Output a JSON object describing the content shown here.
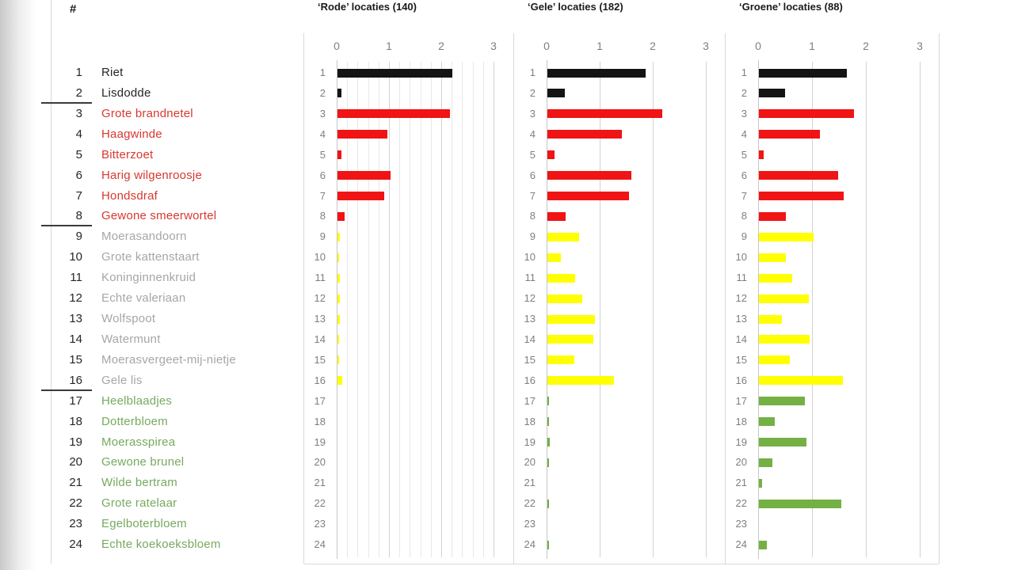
{
  "table": {
    "header_label": "#"
  },
  "species": [
    {
      "num": 1,
      "name": "Riet",
      "group": "black"
    },
    {
      "num": 2,
      "name": "Lisdodde",
      "group": "black"
    },
    {
      "num": 3,
      "name": "Grote brandnetel",
      "group": "red"
    },
    {
      "num": 4,
      "name": "Haagwinde",
      "group": "red"
    },
    {
      "num": 5,
      "name": "Bitterzoet",
      "group": "red"
    },
    {
      "num": 6,
      "name": "Harig wilgenroosje",
      "group": "red"
    },
    {
      "num": 7,
      "name": "Hondsdraf",
      "group": "red"
    },
    {
      "num": 8,
      "name": "Gewone smeerwortel",
      "group": "red"
    },
    {
      "num": 9,
      "name": "Moerasandoorn",
      "group": "yellow"
    },
    {
      "num": 10,
      "name": "Grote kattenstaart",
      "group": "yellow"
    },
    {
      "num": 11,
      "name": "Koninginnenkruid",
      "group": "yellow"
    },
    {
      "num": 12,
      "name": "Echte valeriaan",
      "group": "yellow"
    },
    {
      "num": 13,
      "name": "Wolfspoot",
      "group": "yellow"
    },
    {
      "num": 14,
      "name": "Watermunt",
      "group": "yellow"
    },
    {
      "num": 15,
      "name": "Moerasvergeet-mij-nietje",
      "group": "yellow"
    },
    {
      "num": 16,
      "name": "Gele lis",
      "group": "yellow"
    },
    {
      "num": 17,
      "name": "Heelblaadjes",
      "group": "green"
    },
    {
      "num": 18,
      "name": "Dotterbloem",
      "group": "green"
    },
    {
      "num": 19,
      "name": "Moerasspirea",
      "group": "green"
    },
    {
      "num": 20,
      "name": "Gewone brunel",
      "group": "green"
    },
    {
      "num": 21,
      "name": "Wilde bertram",
      "group": "green"
    },
    {
      "num": 22,
      "name": "Grote ratelaar",
      "group": "green"
    },
    {
      "num": 23,
      "name": "Egelboterbloem",
      "group": "green"
    },
    {
      "num": 24,
      "name": "Echte koekoeksbloem",
      "group": "green"
    }
  ],
  "chart_data": {
    "type": "bar",
    "orientation": "horizontal",
    "xlim": [
      0,
      3
    ],
    "x_ticks": [
      0,
      1,
      2,
      3
    ],
    "grid": "vertical",
    "legend": "none",
    "categories": [
      "Riet",
      "Lisdodde",
      "Grote brandnetel",
      "Haagwinde",
      "Bitterzoet",
      "Harig wilgenroosje",
      "Hondsdraf",
      "Gewone smeerwortel",
      "Moerasandoorn",
      "Grote kattenstaart",
      "Koninginnenkruid",
      "Echte valeriaan",
      "Wolfspoot",
      "Watermunt",
      "Moerasvergeet-mij-nietje",
      "Gele lis",
      "Heelblaadjes",
      "Dotterbloem",
      "Moerasspirea",
      "Gewone brunel",
      "Wilde bertram",
      "Grote ratelaar",
      "Egelboterbloem",
      "Echte koekoeksbloem"
    ],
    "category_groups": [
      "black",
      "black",
      "red",
      "red",
      "red",
      "red",
      "red",
      "red",
      "yellow",
      "yellow",
      "yellow",
      "yellow",
      "yellow",
      "yellow",
      "yellow",
      "yellow",
      "green",
      "green",
      "green",
      "green",
      "green",
      "green",
      "green",
      "green"
    ],
    "group_colors": {
      "black": {
        "bar": "#141414",
        "text": "#262626"
      },
      "red": {
        "bar": "#f01414",
        "text": "#d93830"
      },
      "yellow": {
        "bar": "#ffff00",
        "text": "#a6a6a6"
      },
      "green": {
        "bar": "#74b044",
        "text": "#77aa60"
      }
    },
    "charts": [
      {
        "title": "‘Rode’ locaties (140)",
        "location_count": 140,
        "minor_grid_step": 0.2,
        "values": [
          2.2,
          0.08,
          2.15,
          0.95,
          0.07,
          1.02,
          0.9,
          0.13,
          0.05,
          0.01,
          0.04,
          0.04,
          0.05,
          0.03,
          0.01,
          0.09,
          0,
          0,
          0,
          0,
          0,
          0,
          0,
          0
        ]
      },
      {
        "title": "‘Gele’ locaties (182)",
        "location_count": 182,
        "minor_grid_step": 1,
        "values": [
          1.85,
          0.33,
          2.16,
          1.4,
          0.13,
          1.58,
          1.54,
          0.35,
          0.6,
          0.25,
          0.52,
          0.65,
          0.9,
          0.86,
          0.5,
          1.26,
          0.01,
          0.01,
          0.05,
          0.03,
          0,
          0.03,
          0,
          0.01
        ]
      },
      {
        "title": "‘Groene’ locaties (88)",
        "location_count": 88,
        "minor_grid_step": 1,
        "values": [
          1.63,
          0.48,
          1.77,
          1.13,
          0.09,
          1.47,
          1.57,
          0.5,
          1.02,
          0.5,
          0.62,
          0.93,
          0.43,
          0.94,
          0.57,
          1.56,
          0.86,
          0.29,
          0.88,
          0.25,
          0.06,
          1.53,
          0,
          0.15
        ]
      }
    ]
  }
}
